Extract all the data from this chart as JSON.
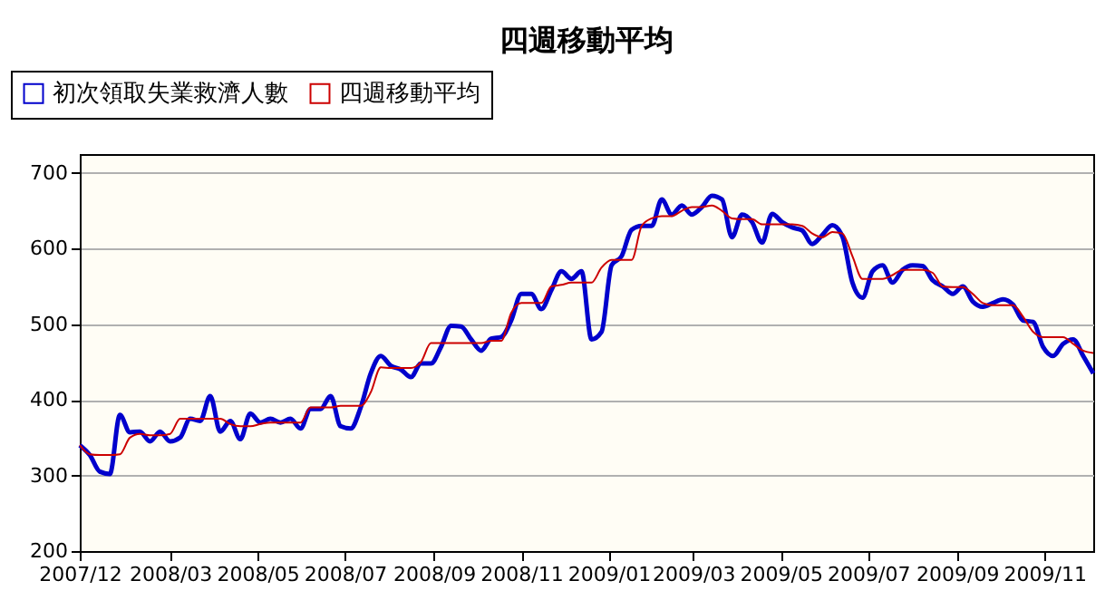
{
  "chart_data": {
    "type": "line",
    "title": "四週移動平均",
    "x": [
      "2007-12-29",
      "2008-01-05",
      "2008-01-12",
      "2008-01-19",
      "2008-01-26",
      "2008-02-02",
      "2008-02-09",
      "2008-02-16",
      "2008-02-23",
      "2008-03-01",
      "2008-03-08",
      "2008-03-15",
      "2008-03-22",
      "2008-03-29",
      "2008-04-05",
      "2008-04-12",
      "2008-04-19",
      "2008-04-26",
      "2008-05-03",
      "2008-05-10",
      "2008-05-17",
      "2008-05-24",
      "2008-05-31",
      "2008-06-07",
      "2008-06-14",
      "2008-06-21",
      "2008-06-28",
      "2008-07-05",
      "2008-07-12",
      "2008-07-19",
      "2008-07-26",
      "2008-08-02",
      "2008-08-09",
      "2008-08-16",
      "2008-08-23",
      "2008-08-30",
      "2008-09-06",
      "2008-09-13",
      "2008-09-20",
      "2008-09-27",
      "2008-10-04",
      "2008-10-11",
      "2008-10-18",
      "2008-10-25",
      "2008-11-01",
      "2008-11-08",
      "2008-11-15",
      "2008-11-22",
      "2008-11-29",
      "2008-12-06",
      "2008-12-13",
      "2008-12-20",
      "2008-12-27",
      "2009-01-03",
      "2009-01-10",
      "2009-01-17",
      "2009-01-24",
      "2009-01-31",
      "2009-02-07",
      "2009-02-14",
      "2009-02-21",
      "2009-02-28",
      "2009-03-07",
      "2009-03-14",
      "2009-03-21",
      "2009-03-28",
      "2009-04-04",
      "2009-04-11",
      "2009-04-18",
      "2009-04-25",
      "2009-05-02",
      "2009-05-09",
      "2009-05-16",
      "2009-05-23",
      "2009-05-30",
      "2009-06-06",
      "2009-06-13",
      "2009-06-20",
      "2009-06-27",
      "2009-07-04",
      "2009-07-11",
      "2009-07-18",
      "2009-07-25",
      "2009-08-01",
      "2009-08-08",
      "2009-08-15",
      "2009-08-22",
      "2009-08-29",
      "2009-09-05",
      "2009-09-12",
      "2009-09-19",
      "2009-09-26",
      "2009-10-03",
      "2009-10-10",
      "2009-10-17",
      "2009-10-24",
      "2009-10-31",
      "2009-11-07",
      "2009-11-14",
      "2009-11-21",
      "2009-11-28",
      "2009-12-05"
    ],
    "series": [
      {
        "name": "初次領取失業救濟人數",
        "color": "#0000cc",
        "values": [
          340,
          327,
          305,
          302,
          380,
          357,
          358,
          345,
          358,
          345,
          350,
          375,
          372,
          405,
          358,
          372,
          348,
          382,
          370,
          375,
          370,
          375,
          362,
          388,
          388,
          405,
          365,
          362,
          390,
          435,
          458,
          445,
          440,
          430,
          448,
          448,
          470,
          498,
          497,
          480,
          465,
          481,
          483,
          505,
          540,
          540,
          520,
          545,
          570,
          560,
          570,
          480,
          490,
          578,
          590,
          625,
          630,
          630,
          665,
          645,
          657,
          645,
          655,
          670,
          665,
          615,
          645,
          635,
          608,
          646,
          635,
          628,
          624,
          606,
          618,
          631,
          616,
          555,
          535,
          570,
          578,
          555,
          572,
          578,
          577,
          558,
          550,
          540,
          550,
          530,
          523,
          528,
          533,
          526,
          505,
          503,
          470,
          458,
          474,
          480,
          458,
          435
        ]
      },
      {
        "name": "四週移動平均",
        "color": "#cc0000",
        "values": [
          340,
          328,
          327,
          327,
          328,
          350,
          355,
          353,
          353,
          355,
          375,
          375,
          375,
          375,
          375,
          368,
          365,
          365,
          368,
          370,
          370,
          370,
          370,
          390,
          390,
          390,
          392,
          392,
          392,
          410,
          443,
          442,
          442,
          442,
          450,
          475,
          475,
          475,
          475,
          475,
          475,
          478,
          478,
          515,
          528,
          528,
          528,
          550,
          552,
          555,
          555,
          555,
          575,
          585,
          585,
          585,
          630,
          640,
          643,
          643,
          650,
          655,
          655,
          657,
          650,
          640,
          639,
          639,
          632,
          632,
          632,
          632,
          630,
          620,
          615,
          622,
          620,
          590,
          560,
          560,
          560,
          565,
          572,
          572,
          572,
          568,
          550,
          549,
          549,
          540,
          528,
          525,
          525,
          525,
          510,
          490,
          483,
          483,
          483,
          474,
          465,
          462
        ]
      }
    ],
    "xlim": [
      "2007-12-29",
      "2009-12-05"
    ],
    "xticks": [
      {
        "value": "2007-12-29",
        "label": "2007/12"
      },
      {
        "value": "2008-03-01",
        "label": "2008/03"
      },
      {
        "value": "2008-05-01",
        "label": "2008/05"
      },
      {
        "value": "2008-07-01",
        "label": "2008/07"
      },
      {
        "value": "2008-09-01",
        "label": "2008/09"
      },
      {
        "value": "2008-11-01",
        "label": "2008/11"
      },
      {
        "value": "2009-01-01",
        "label": "2009/01"
      },
      {
        "value": "2009-03-01",
        "label": "2009/03"
      },
      {
        "value": "2009-05-01",
        "label": "2009/05"
      },
      {
        "value": "2009-07-01",
        "label": "2009/07"
      },
      {
        "value": "2009-09-01",
        "label": "2009/09"
      },
      {
        "value": "2009-11-01",
        "label": "2009/11"
      }
    ],
    "ylim": [
      200,
      725
    ],
    "yticks": [
      200,
      300,
      400,
      500,
      600,
      700
    ],
    "grid": "y",
    "legend": "top left",
    "line_style": "solid"
  }
}
